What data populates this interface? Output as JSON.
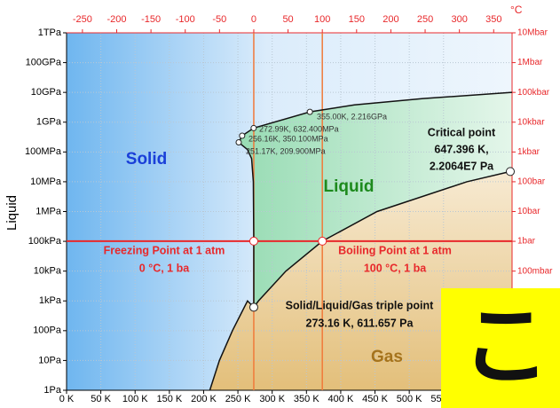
{
  "chart_data": {
    "type": "phase",
    "y_label": "Liquid",
    "x2_label": "°C",
    "xlim": [
      0,
      650
    ],
    "xticks": [
      {
        "value": 0,
        "label": "0 K"
      },
      {
        "value": 50,
        "label": "50 K"
      },
      {
        "value": 100,
        "label": "100 K"
      },
      {
        "value": 150,
        "label": "150 K"
      },
      {
        "value": 200,
        "label": "200 K"
      },
      {
        "value": 250,
        "label": "250 K"
      },
      {
        "value": 300,
        "label": "300 K"
      },
      {
        "value": 350,
        "label": "350 K"
      },
      {
        "value": 400,
        "label": "400 K"
      },
      {
        "value": 450,
        "label": "450 K"
      },
      {
        "value": 500,
        "label": "500 K"
      },
      {
        "value": 550,
        "label": "550 K"
      }
    ],
    "x2lim": [
      -273.15,
      376.85
    ],
    "x2ticks": [
      -250,
      -200,
      -150,
      -100,
      -50,
      0,
      50,
      100,
      150,
      200,
      250,
      300,
      350
    ],
    "ylim": [
      1,
      1000000000000
    ],
    "log_y": true,
    "yticks": [
      {
        "value": 1000000000000,
        "label": "1TPa"
      },
      {
        "value": 100000000000,
        "label": "100GPa"
      },
      {
        "value": 10000000000,
        "label": "10GPa"
      },
      {
        "value": 1000000000,
        "label": "1GPa"
      },
      {
        "value": 100000000,
        "label": "100MPa"
      },
      {
        "value": 10000000,
        "label": "10MPa"
      },
      {
        "value": 1000000,
        "label": "1MPa"
      },
      {
        "value": 100000,
        "label": "100kPa"
      },
      {
        "value": 10000,
        "label": "10kPa"
      },
      {
        "value": 1000,
        "label": "1kPa"
      },
      {
        "value": 100,
        "label": "100Pa"
      },
      {
        "value": 10,
        "label": "10Pa"
      },
      {
        "value": 1,
        "label": "1Pa"
      }
    ],
    "y2lim": [
      1e-05,
      10000000
    ],
    "y2ticks": [
      {
        "value": 10000000,
        "label": "10Mbar"
      },
      {
        "value": 1000000,
        "label": "1Mbar"
      },
      {
        "value": 100000,
        "label": "100kbar"
      },
      {
        "value": 10000,
        "label": "10kbar"
      },
      {
        "value": 1000,
        "label": "1kbar"
      },
      {
        "value": 100,
        "label": "100bar"
      },
      {
        "value": 10,
        "label": "10bar"
      },
      {
        "value": 1,
        "label": "1bar"
      },
      {
        "value": 0.1,
        "label": "100mbar"
      }
    ],
    "grid": true,
    "axis2_color": "#e8282b",
    "curves": [
      {
        "color": "#111111",
        "x": [
          209,
          223,
          242,
          264,
          273.16
        ],
        "values": [
          1,
          10,
          100,
          1000,
          611.657
        ]
      },
      {
        "color": "#111111",
        "x": [
          273.16,
          280,
          320,
          373.15,
          453,
          584,
          647.396
        ],
        "values": [
          611.657,
          1000,
          10000,
          101325,
          1000000,
          10000000,
          22064000
        ]
      },
      {
        "color": "#111111",
        "x": [
          273.16,
          273.15,
          272.5,
          270,
          264,
          251.17,
          256.16,
          272.99,
          355,
          420,
          520,
          650
        ],
        "values": [
          611.657,
          101325,
          10000000,
          60000000,
          120000000,
          209900000,
          350100000,
          632400000,
          2216000000,
          3800000000,
          6200000000,
          10000000000
        ]
      }
    ],
    "lines_color": "#e8282b",
    "points": [
      {
        "x": 273.15,
        "y": 101325,
        "label": [
          "Freezing Point at 1 atm",
          "0 °C, 1 ba"
        ]
      },
      {
        "x": 373.15,
        "y": 101325,
        "label": [
          "Boiling Point at 1 atm",
          "100 °C, 1 ba"
        ]
      },
      {
        "x": 273.16,
        "y": 611.657,
        "label": [
          "Solid/Liquid/Gas triple point",
          "273.16 K, 611.657 Pa"
        ]
      },
      {
        "x": 647.396,
        "y": 22064000,
        "label": [
          "Critical point",
          "647.396 K,",
          "2.2064E7 Pa"
        ]
      },
      {
        "x": 251.17,
        "y": 209900000,
        "label": [
          "251.17K, 209.900MPa"
        ]
      },
      {
        "x": 256.16,
        "y": 350100000,
        "label": [
          "256.16K, 350.100MPa"
        ]
      },
      {
        "x": 272.99,
        "y": 632400000,
        "label": [
          "272.99K, 632.400MPa"
        ]
      },
      {
        "x": 355,
        "y": 2216000000,
        "label": [
          "355.00K, 2.216GPa"
        ]
      }
    ],
    "regions": [
      {
        "label": "Solid",
        "color": "#1a3fd8"
      },
      {
        "label": "Liquid",
        "color": "#1d8a1d"
      },
      {
        "label": "Gas",
        "color": "#a5731c"
      }
    ]
  },
  "overlay": {
    "text": "こ"
  }
}
